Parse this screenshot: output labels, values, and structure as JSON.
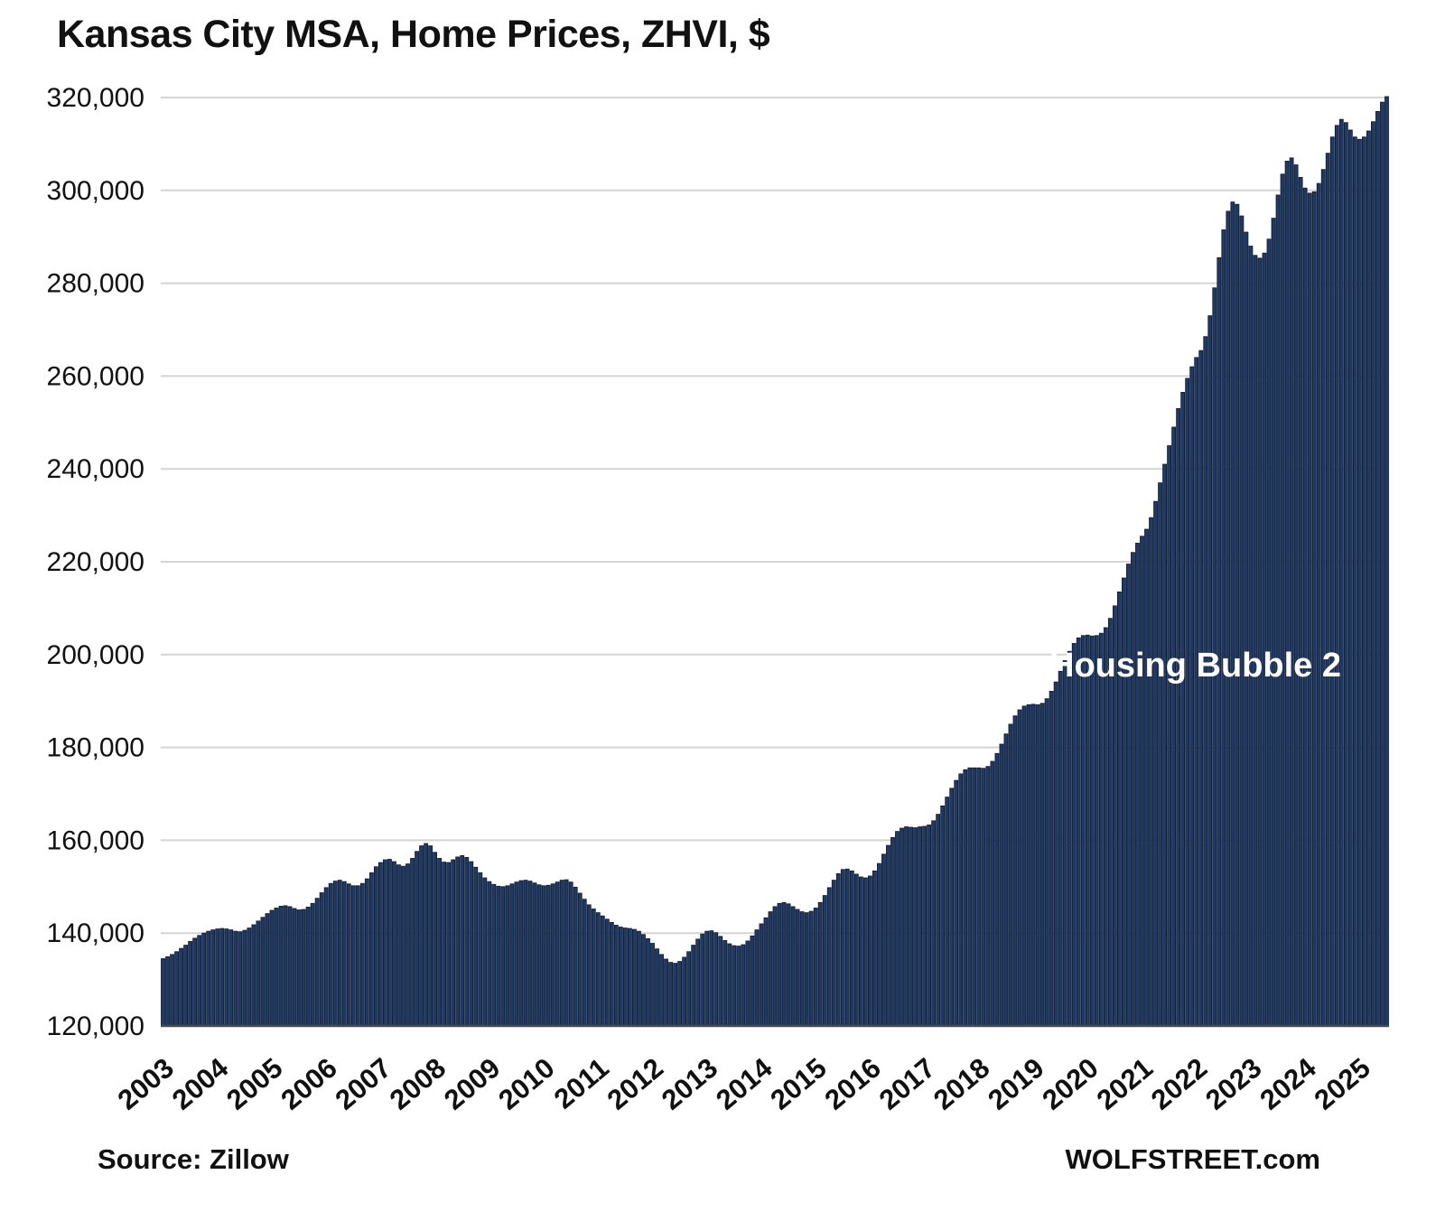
{
  "chart_data": {
    "type": "bar",
    "title": "Kansas City MSA, Home Prices, ZHVI, $",
    "annotation": "Housing Bubble 2",
    "source": "Source: Zillow",
    "watermark": "WOLFSTREET.com",
    "unit": "USD",
    "frequency": "monthly",
    "start": "2003-01",
    "end": "2025-07",
    "ylim": [
      120000,
      320000
    ],
    "ytick_step": 20000,
    "grid": "horizontal",
    "legend": "none",
    "x_tick_labels": [
      "2003",
      "2004",
      "2005",
      "2006",
      "2007",
      "2008",
      "2009",
      "2010",
      "2011",
      "2012",
      "2013",
      "2014",
      "2015",
      "2016",
      "2017",
      "2018",
      "2019",
      "2020",
      "2021",
      "2022",
      "2023",
      "2024",
      "2025"
    ],
    "colors": {
      "bar_fill": "#203a64",
      "bar_stroke": "#0b1830",
      "grid": "#d4d4d4",
      "axis": "#4a4a4a",
      "text": "#111111",
      "annotation_text": "#ffffff",
      "background": "#ffffff"
    },
    "values": [
      134500,
      134900,
      135400,
      136000,
      136700,
      137400,
      138200,
      138900,
      139500,
      140000,
      140400,
      140700,
      140900,
      141000,
      140900,
      140700,
      140400,
      140300,
      140600,
      141100,
      141800,
      142600,
      143400,
      144200,
      144900,
      145400,
      145800,
      145900,
      145700,
      145300,
      145000,
      145100,
      145600,
      146400,
      147500,
      148700,
      149800,
      150700,
      151200,
      151400,
      151100,
      150600,
      150200,
      150200,
      150700,
      151700,
      153000,
      154300,
      155200,
      155800,
      155900,
      155400,
      154700,
      154400,
      154900,
      156100,
      157600,
      158800,
      159300,
      158800,
      157400,
      156100,
      155300,
      155200,
      155800,
      156400,
      156700,
      156300,
      155400,
      154200,
      153000,
      151900,
      151100,
      150500,
      150100,
      150000,
      150200,
      150600,
      151000,
      151300,
      151400,
      151200,
      150800,
      150400,
      150200,
      150300,
      150600,
      151000,
      151400,
      151500,
      151000,
      149900,
      148600,
      147300,
      146100,
      145200,
      144400,
      143700,
      143000,
      142300,
      141700,
      141300,
      141100,
      141000,
      140800,
      140400,
      139700,
      138800,
      137800,
      136600,
      135400,
      134400,
      133700,
      133500,
      133900,
      134800,
      136000,
      137400,
      138700,
      139800,
      140400,
      140500,
      140100,
      139300,
      138400,
      137700,
      137300,
      137200,
      137500,
      138300,
      139400,
      140700,
      142000,
      143300,
      144600,
      145700,
      146400,
      146600,
      146300,
      145700,
      145100,
      144600,
      144400,
      144700,
      145400,
      146600,
      148100,
      149800,
      151400,
      152800,
      153700,
      153800,
      153400,
      152700,
      152100,
      151900,
      152300,
      153400,
      155000,
      157000,
      158900,
      160600,
      161900,
      162600,
      162900,
      162800,
      162700,
      162900,
      163000,
      163300,
      164200,
      165600,
      167400,
      169300,
      171200,
      172900,
      174300,
      175200,
      175600,
      175600,
      175600,
      175500,
      175900,
      177000,
      178700,
      180700,
      182900,
      185000,
      186800,
      188100,
      188900,
      189200,
      189300,
      189200,
      189500,
      190500,
      192100,
      194100,
      196400,
      198700,
      200700,
      202400,
      203600,
      204100,
      204200,
      204000,
      204100,
      204600,
      205800,
      207800,
      210500,
      213500,
      216500,
      219500,
      222000,
      224000,
      225500,
      227000,
      229500,
      233000,
      237000,
      241000,
      245000,
      249000,
      253000,
      256500,
      259500,
      262000,
      264000,
      265500,
      268500,
      273000,
      279000,
      285500,
      291500,
      295500,
      297500,
      297000,
      294500,
      291000,
      288000,
      286000,
      285400,
      286500,
      289500,
      294000,
      299000,
      303500,
      306300,
      307000,
      305500,
      302800,
      300500,
      299400,
      299700,
      301500,
      304500,
      308000,
      311500,
      314000,
      315300,
      314600,
      313000,
      311500,
      311000,
      311500,
      312800,
      314800,
      317000,
      319000,
      320200
    ]
  }
}
